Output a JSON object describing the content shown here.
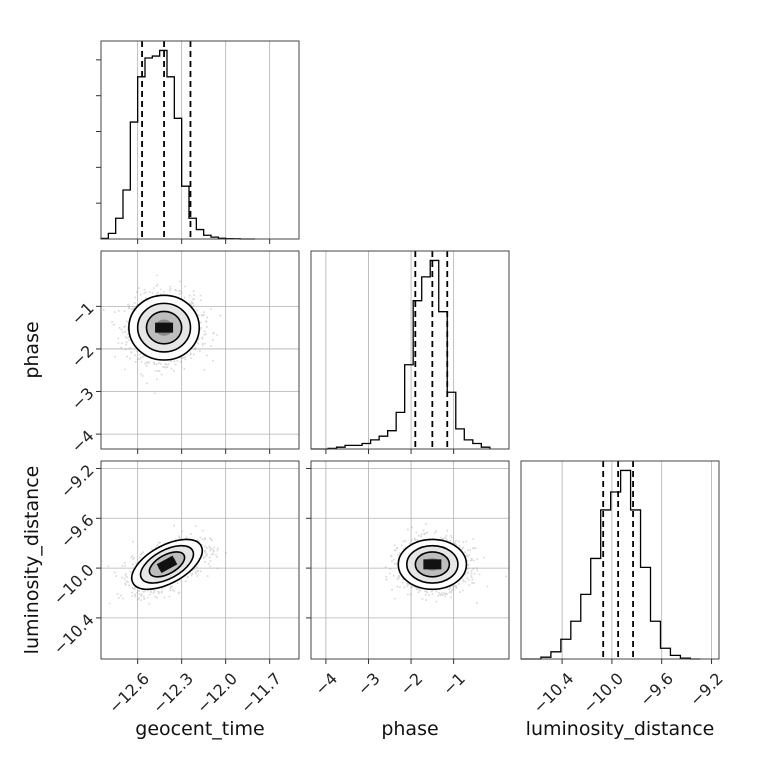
{
  "chart_data": {
    "type": "corner",
    "parameters": [
      "geocent_time",
      "phase",
      "luminosity_distance"
    ],
    "axis_labels": {
      "geocent_time": "geocent_time",
      "phase": "phase",
      "luminosity_distance": "luminosity_distance"
    },
    "ranges": {
      "geocent_time": [
        -12.85,
        -11.5
      ],
      "phase": [
        -4.35,
        0.3
      ],
      "luminosity_distance": [
        -10.73,
        -9.14
      ]
    },
    "ticks": {
      "geocent_time": {
        "values": [
          -12.6,
          -12.3,
          -12.0,
          -11.7
        ],
        "labels": [
          "−12.6",
          "−12.3",
          "−12.0",
          "−11.7"
        ]
      },
      "phase": {
        "values": [
          -4,
          -3,
          -2,
          -1
        ],
        "labels": [
          "−4",
          "−3",
          "−2",
          "−1"
        ]
      },
      "luminosity_distance": {
        "values": [
          -10.4,
          -10.0,
          -9.6,
          -9.2
        ],
        "labels": [
          "−10.4",
          "−10.0",
          "−9.6",
          "−9.2"
        ]
      }
    },
    "quantiles": {
      "geocent_time": [
        -12.57,
        -12.42,
        -12.24
      ],
      "phase": [
        -1.9,
        -1.5,
        -1.15
      ],
      "luminosity_distance": [
        -10.07,
        -9.95,
        -9.83
      ]
    },
    "grid": true,
    "histograms": {
      "geocent_time": {
        "edges": [
          -12.85,
          -12.8,
          -12.75,
          -12.7,
          -12.65,
          -12.6,
          -12.55,
          -12.5,
          -12.45,
          -12.4,
          -12.35,
          -12.3,
          -12.25,
          -12.2,
          -12.15,
          -12.1,
          -12.05,
          -12.0,
          -11.95,
          -11.9,
          -11.85,
          -11.8
        ],
        "counts": [
          0.3,
          3,
          11,
          26,
          62,
          86,
          96,
          97,
          100,
          86,
          64,
          28,
          11,
          5,
          2,
          1,
          0.4,
          0.2,
          0.1,
          0,
          0
        ]
      },
      "phase": {
        "edges": [
          -4.35,
          -4.15,
          -3.95,
          -3.75,
          -3.55,
          -3.35,
          -3.15,
          -2.95,
          -2.75,
          -2.55,
          -2.35,
          -2.15,
          -1.95,
          -1.75,
          -1.55,
          -1.35,
          -1.15,
          -0.95,
          -0.75,
          -0.55,
          -0.35,
          -0.15
        ],
        "counts": [
          0,
          0,
          0.3,
          1,
          2,
          2,
          3,
          5,
          7,
          10,
          20,
          46,
          81,
          94,
          103,
          75,
          31,
          11,
          5,
          3,
          1
        ]
      },
      "luminosity_distance": {
        "edges": [
          -10.73,
          -10.65,
          -10.57,
          -10.49,
          -10.41,
          -10.33,
          -10.25,
          -10.17,
          -10.09,
          -10.01,
          -9.93,
          -9.85,
          -9.77,
          -9.69,
          -9.61,
          -9.53,
          -9.45,
          -9.37,
          -9.29
        ],
        "counts": [
          0,
          0,
          1,
          4,
          11,
          21,
          36,
          56,
          83,
          93,
          105,
          83,
          51,
          21,
          6,
          2,
          0.5,
          0
        ]
      }
    },
    "joint_distributions": [
      {
        "x": "geocent_time",
        "y": "phase",
        "center": [
          -12.42,
          -1.5
        ],
        "spread": [
          0.12,
          0.38
        ],
        "correlation": 0.0
      },
      {
        "x": "geocent_time",
        "y": "luminosity_distance",
        "center": [
          -12.4,
          -9.97
        ],
        "spread": [
          0.12,
          0.1
        ],
        "correlation": 0.55
      },
      {
        "x": "phase",
        "y": "luminosity_distance",
        "center": [
          -1.5,
          -9.97
        ],
        "spread": [
          0.4,
          0.1
        ],
        "correlation": 0.0
      }
    ],
    "contour_levels_sigma": [
      0.5,
      1.0,
      1.5,
      2.0
    ]
  }
}
